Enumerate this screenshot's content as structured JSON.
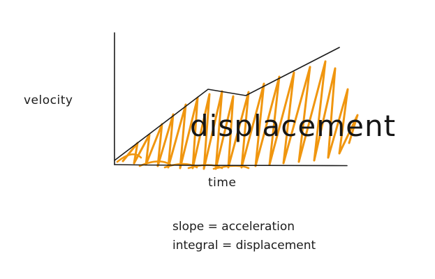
{
  "diagram": {
    "y_axis_label": "velocity",
    "x_axis_label": "time",
    "area_label": "displacement",
    "notes": [
      "slope = acceleration",
      "integral = displacement"
    ],
    "colors": {
      "ink": "#1b1b1b",
      "shade": "#f0960f"
    }
  }
}
